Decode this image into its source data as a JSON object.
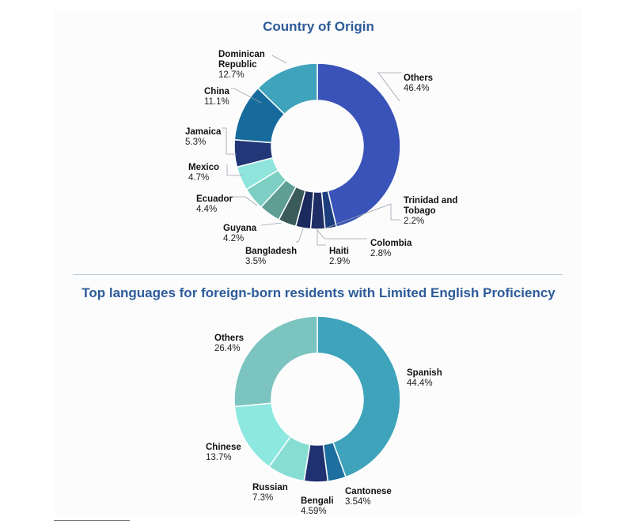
{
  "chart_data": [
    {
      "type": "pie",
      "title": "Country of Origin",
      "slices": [
        {
          "label": [
            "Others"
          ],
          "value_text": "46.4%",
          "value": 46.4,
          "color": "#3a53b8"
        },
        {
          "label": [
            "Trinidad and",
            "Tobago"
          ],
          "value_text": "2.2%",
          "value": 2.2,
          "color": "#1c3d7e"
        },
        {
          "label": [
            "Colombia"
          ],
          "value_text": "2.8%",
          "value": 2.8,
          "color": "#1f2f66"
        },
        {
          "label": [
            "Haiti"
          ],
          "value_text": "2.9%",
          "value": 2.9,
          "color": "#1a2a5c"
        },
        {
          "label": [
            "Bangladesh"
          ],
          "value_text": "3.5%",
          "value": 3.5,
          "color": "#3b5a5c"
        },
        {
          "label": [
            "Guyana"
          ],
          "value_text": "4.2%",
          "value": 4.2,
          "color": "#5e9e95"
        },
        {
          "label": [
            "Ecuador"
          ],
          "value_text": "4.4%",
          "value": 4.4,
          "color": "#7ccfc2"
        },
        {
          "label": [
            "Mexico"
          ],
          "value_text": "4.7%",
          "value": 4.7,
          "color": "#8fe5dc"
        },
        {
          "label": [
            "Jamaica"
          ],
          "value_text": "5.3%",
          "value": 5.3,
          "color": "#213777"
        },
        {
          "label": [
            "China"
          ],
          "value_text": "11.1%",
          "value": 11.1,
          "color": "#176b9c"
        },
        {
          "label": [
            "Dominican",
            "Republic"
          ],
          "value_text": "12.7%",
          "value": 12.7,
          "color": "#3fa3bb"
        }
      ]
    },
    {
      "type": "pie",
      "title": "Top languages for foreign-born residents with Limited English Proficiency",
      "slices": [
        {
          "label": [
            "Spanish"
          ],
          "value_text": "44.4%",
          "value": 44.4,
          "color": "#3ea3bb"
        },
        {
          "label": [
            "Cantonese"
          ],
          "value_text": "3.54%",
          "value": 3.54,
          "color": "#1d6f9f"
        },
        {
          "label": [
            "Bengali"
          ],
          "value_text": "4.59%",
          "value": 4.59,
          "color": "#1f3170"
        },
        {
          "label": [
            "Russian"
          ],
          "value_text": "7.3%",
          "value": 7.3,
          "color": "#88ddd3"
        },
        {
          "label": [
            "Chinese"
          ],
          "value_text": "13.7%",
          "value": 13.7,
          "color": "#8de8e0"
        },
        {
          "label": [
            "Others"
          ],
          "value_text": "26.4%",
          "value": 26.4,
          "color": "#7cc4bf"
        }
      ]
    }
  ]
}
